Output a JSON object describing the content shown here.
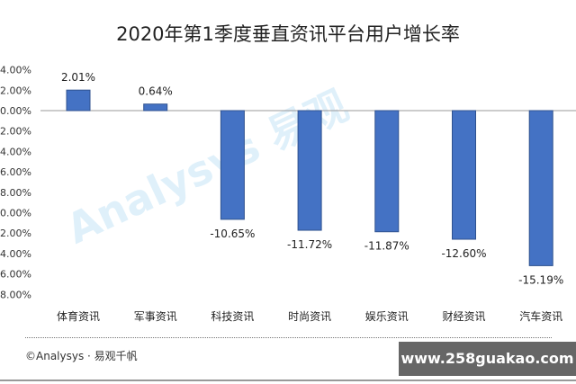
{
  "chart_data": {
    "type": "bar",
    "title": "2020年第1季度垂直资讯平台用户增长率",
    "categories": [
      "体育资讯",
      "军事资讯",
      "科技资讯",
      "时尚资讯",
      "娱乐资讯",
      "财经资讯",
      "汽车资讯"
    ],
    "values": [
      2.01,
      0.64,
      -10.65,
      -11.72,
      -11.87,
      -12.6,
      -15.19
    ],
    "data_labels": [
      "2.01%",
      "0.64%",
      "-10.65%",
      "-11.72%",
      "-11.87%",
      "-12.60%",
      "-15.19%"
    ],
    "ylim": [
      -18,
      4
    ],
    "yticks": [
      "4.00%",
      "2.00%",
      "0.00%",
      "-2.00%",
      "-4.00%",
      "-6.00%",
      "-8.00%",
      "-10.00%",
      "-12.00%",
      "-14.00%",
      "-16.00%",
      "-18.00%"
    ],
    "ytick_values": [
      4,
      2,
      0,
      -2,
      -4,
      -6,
      -8,
      -10,
      -12,
      -14,
      -16,
      -18
    ],
    "grid": false,
    "bar_color": "#4472C4",
    "bar_edge": "#2F528F"
  },
  "footer": {
    "copyright": "©Analysys · 易观千帆",
    "watermark": "www.258guakao.com",
    "background_watermark": "Analysys 易观"
  }
}
